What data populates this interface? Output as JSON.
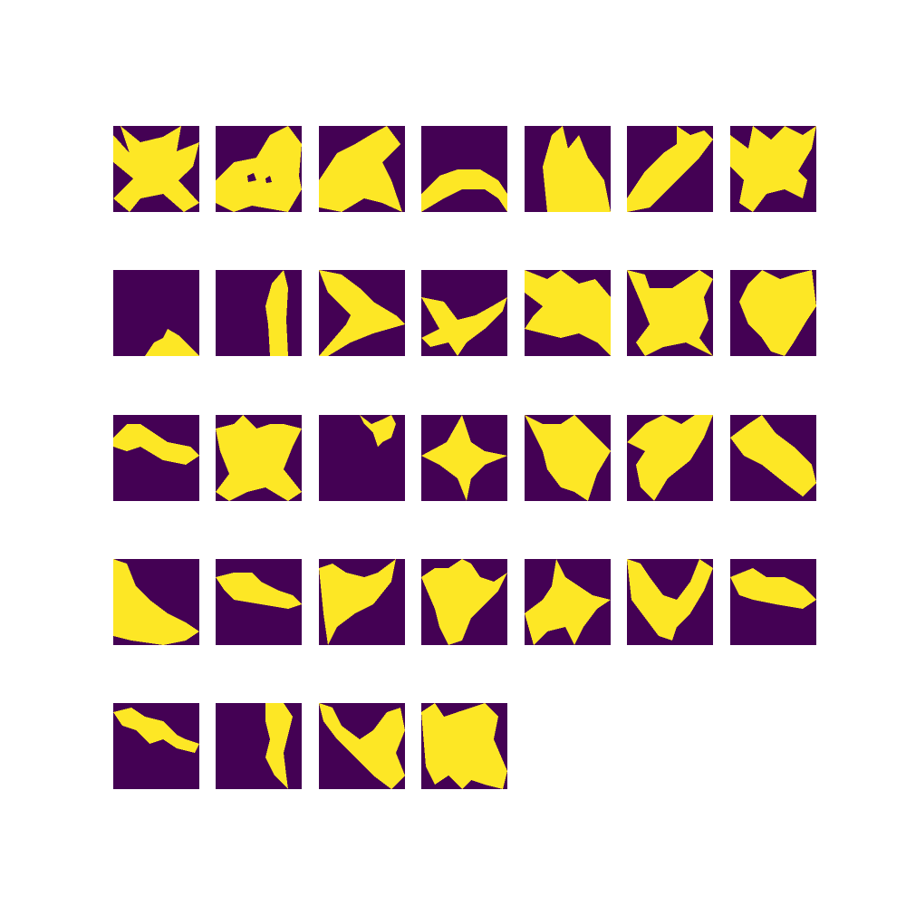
{
  "figure": {
    "grid_rows": 5,
    "grid_cols": 7,
    "colors": {
      "background": "#440154",
      "foreground": "#fde725",
      "figure_bg": "#ffffff"
    },
    "masks": [
      {
        "shape": "star-x"
      },
      {
        "shape": "bird-holes"
      },
      {
        "shape": "runner"
      },
      {
        "shape": "low-arch"
      },
      {
        "shape": "tall-blob"
      },
      {
        "shape": "diagonal-band"
      },
      {
        "shape": "star-x-2"
      },
      {
        "shape": "small-hook"
      },
      {
        "shape": "thin-bar"
      },
      {
        "shape": "arrowhead"
      },
      {
        "shape": "plane"
      },
      {
        "shape": "sprawl"
      },
      {
        "shape": "flyer"
      },
      {
        "shape": "broken-blob"
      },
      {
        "shape": "fish"
      },
      {
        "shape": "four-point"
      },
      {
        "shape": "top-hook"
      },
      {
        "shape": "star4"
      },
      {
        "shape": "cape"
      },
      {
        "shape": "split-wing"
      },
      {
        "shape": "slab"
      },
      {
        "shape": "left-slope"
      },
      {
        "shape": "dart"
      },
      {
        "shape": "wing-cup"
      },
      {
        "shape": "bird-wide"
      },
      {
        "shape": "star-offset"
      },
      {
        "shape": "swoop"
      },
      {
        "shape": "fish-2"
      },
      {
        "shape": "wave"
      },
      {
        "shape": "thin-slash"
      },
      {
        "shape": "v-dive"
      },
      {
        "shape": "cup-notch"
      }
    ]
  }
}
